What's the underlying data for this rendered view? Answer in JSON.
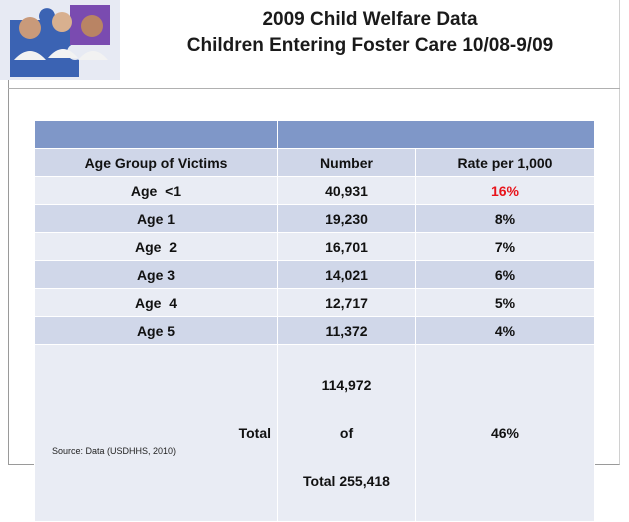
{
  "header": {
    "title": [
      "2009 Child Welfare Data",
      "Children Entering Foster Care 10/08-9/09"
    ]
  },
  "table": {
    "columns": [
      "Age Group of Victims",
      "Number",
      "Rate per 1,000"
    ],
    "rows": [
      [
        "Age  <1",
        "40,931",
        "16%"
      ],
      [
        "Age 1",
        "19,230",
        "8%"
      ],
      [
        "Age  2",
        "16,701",
        "7%"
      ],
      [
        "Age 3",
        "14,021",
        "6%"
      ],
      [
        "Age  4",
        "12,717",
        "5%"
      ],
      [
        "Age 5",
        "11,372",
        "4%"
      ]
    ],
    "total": {
      "label": "Total",
      "number": [
        "114,972",
        "of",
        "Total 255,418"
      ],
      "rate": "46%"
    }
  },
  "footer": {
    "source": "Source: Data  (USDHHS, 2010)"
  }
}
